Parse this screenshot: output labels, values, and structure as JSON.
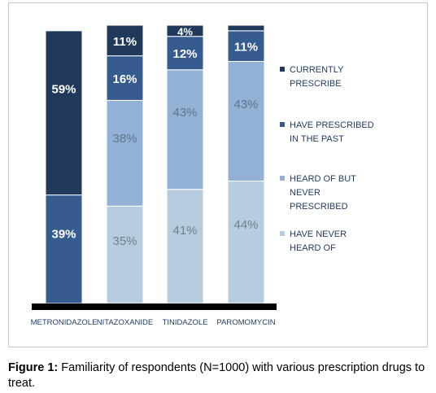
{
  "chart_data": {
    "type": "bar",
    "stacked": true,
    "orientation": "vertical",
    "categories": [
      "METRONIDAZOLE",
      "NITAZOXANIDE",
      "TINIDAZOLE",
      "PAROMOMYCIN"
    ],
    "series": [
      {
        "name": "HAVE NEVER HEARD OF",
        "values": [
          0,
          35,
          41,
          44
        ],
        "labels": [
          "",
          "35%",
          "41%",
          "44%"
        ],
        "color": "#b8cce0",
        "label_color": "#6f7f8e"
      },
      {
        "name": "HEARD OF BUT NEVER PRESCRIBED",
        "values": [
          0,
          38,
          43,
          43
        ],
        "labels": [
          "",
          "38%",
          "43%",
          "43%"
        ],
        "color": "#93b1d6",
        "label_color": "#5f7388"
      },
      {
        "name": "HAVE PRESCRIBED IN THE PAST",
        "values": [
          39,
          16,
          12,
          11
        ],
        "labels": [
          "39%",
          "16%",
          "12%",
          "11%"
        ],
        "color": "#365c8f",
        "label_color": "#ffffff"
      },
      {
        "name": "CURRENTLY PRESCRIBE",
        "values": [
          59,
          11,
          4,
          2
        ],
        "labels": [
          "59%",
          "11%",
          "4%",
          ""
        ],
        "color": "#213a5b",
        "label_color": "#ffffff"
      }
    ],
    "legend": {
      "placement": "right",
      "entries": [
        {
          "lines": [
            "CURRENTLY",
            "PRESCRIBE"
          ],
          "color": "#213a5b"
        },
        {
          "lines": [
            "HAVE PRESCRIBED",
            "IN THE PAST"
          ],
          "color": "#365c8f"
        },
        {
          "lines": [
            "HEARD OF BUT",
            "NEVER",
            "PRESCRIBED"
          ],
          "color": "#93b1d6"
        },
        {
          "lines": [
            "HAVE NEVER",
            "HEARD OF"
          ],
          "color": "#b8cce0"
        }
      ]
    },
    "ylim": [
      0,
      100
    ],
    "grid": false,
    "title": "",
    "xlabel": "",
    "ylabel": ""
  },
  "caption": {
    "label": "Figure 1:",
    "text": " Familiarity of respondents (N=1000) with various prescription drugs to treat."
  },
  "colors": {
    "axis": "#000000",
    "legend_text": "#1f3a5f",
    "category_text": "#1f3a5f"
  }
}
